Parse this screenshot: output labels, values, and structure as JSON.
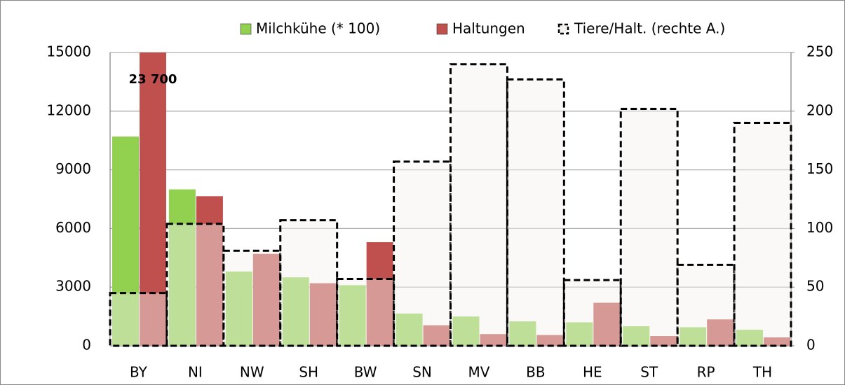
{
  "chart_data": {
    "type": "bar",
    "categories": [
      "BY",
      "NI",
      "NW",
      "SH",
      "BW",
      "SN",
      "MV",
      "BB",
      "HE",
      "ST",
      "RP",
      "TH"
    ],
    "series": [
      {
        "name": "Milchkühe (* 100)",
        "color": "#92d050",
        "values": [
          10700,
          8000,
          3800,
          3500,
          3100,
          1650,
          1500,
          1250,
          1200,
          1000,
          950,
          820
        ]
      },
      {
        "name": "Haltungen",
        "color": "#c0504d",
        "values": [
          23700,
          7650,
          4700,
          3200,
          5300,
          1050,
          600,
          550,
          2200,
          500,
          1350,
          430
        ],
        "value_labels": [
          "23 700",
          null,
          null,
          null,
          null,
          null,
          null,
          null,
          null,
          null,
          null,
          null
        ]
      },
      {
        "name": "Tiere/Halt. (rechte A.)",
        "color": "#000000",
        "axis": "y2",
        "line_style": "dashed",
        "values": [
          45,
          104,
          81,
          107,
          57,
          157,
          240,
          227,
          56,
          202,
          69,
          190
        ]
      }
    ],
    "ylim": [
      0,
      15000
    ],
    "yticks": [
      0,
      3000,
      6000,
      9000,
      12000,
      15000
    ],
    "y2lim": [
      0,
      250
    ],
    "y2ticks": [
      0,
      50,
      100,
      150,
      200,
      250
    ],
    "grid": true
  }
}
